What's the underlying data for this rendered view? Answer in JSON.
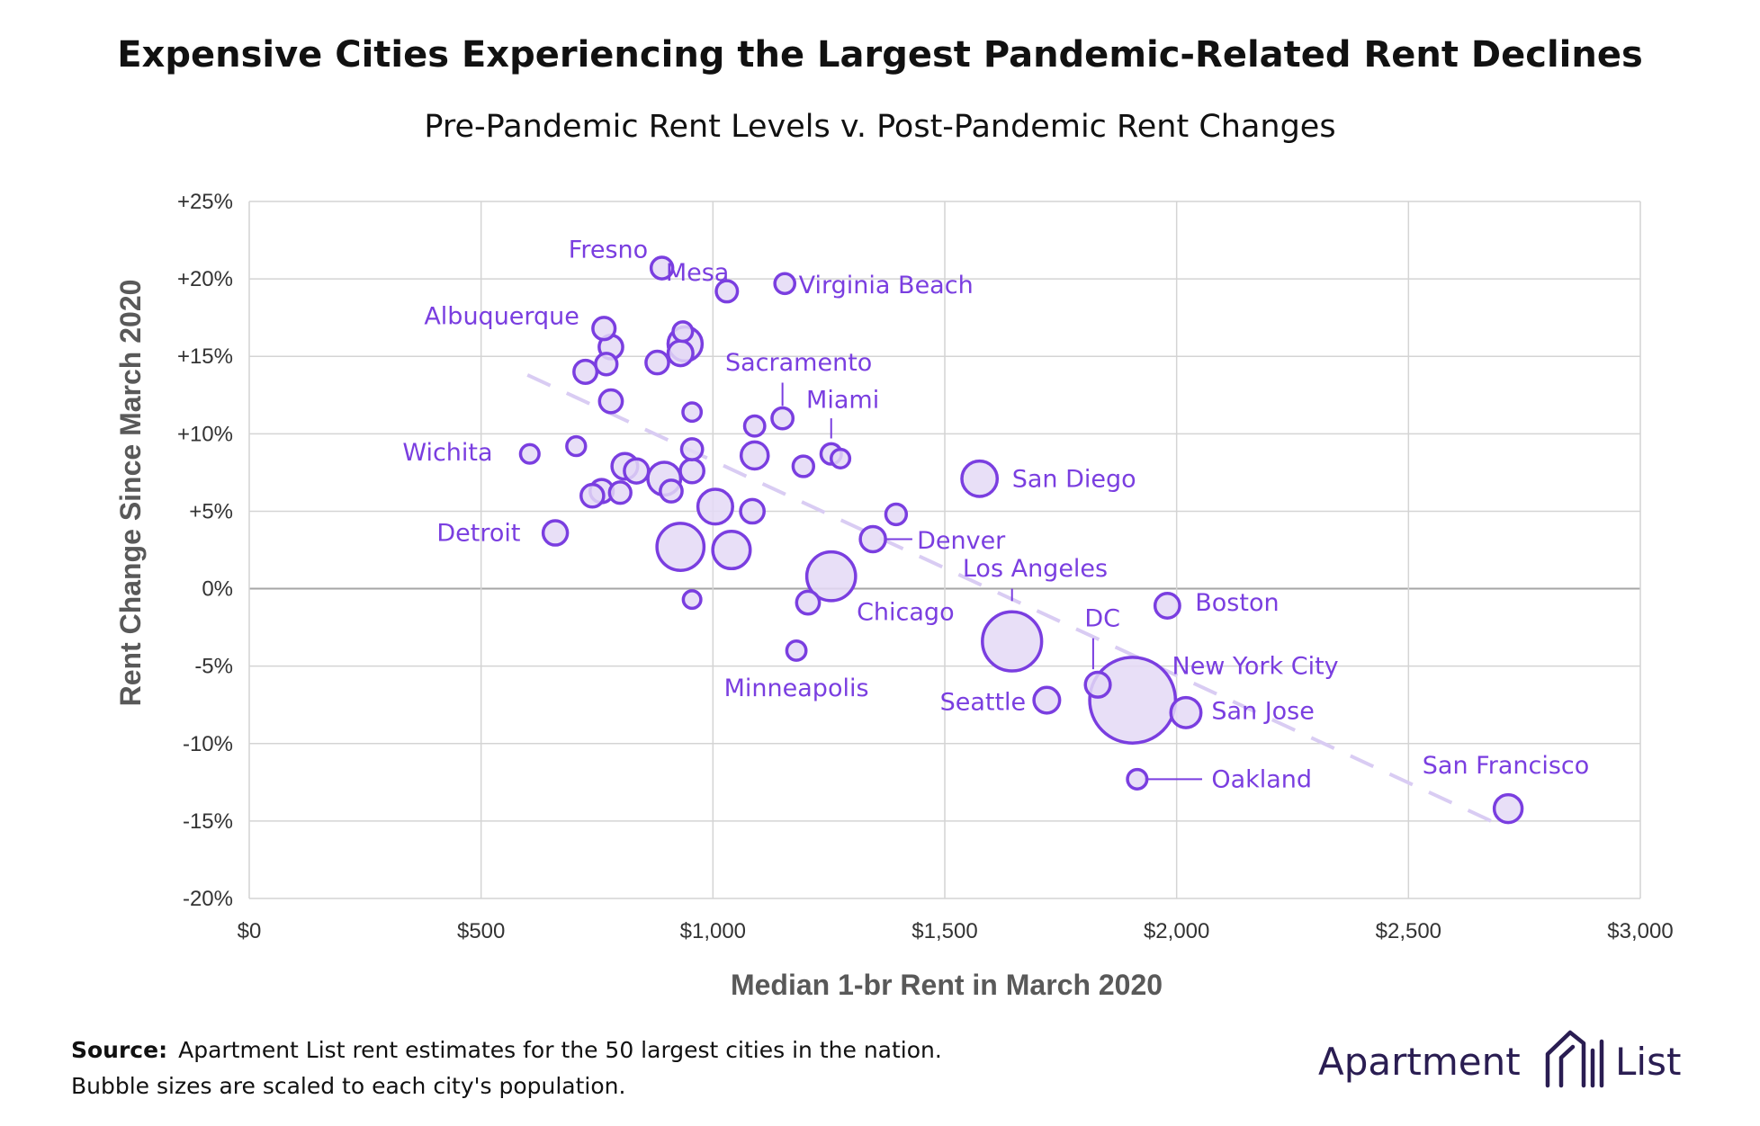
{
  "colors": {
    "accent": "#7a3ee0",
    "bubble_fill": "#e4d9f6",
    "trend": "#d9ccf3",
    "grid": "#d4d4d4",
    "brand": "#2a1d52"
  },
  "chart_data": {
    "type": "scatter",
    "title": "Expensive Cities Experiencing the Largest Pandemic-Related Rent Declines",
    "subtitle": "Pre-Pandemic Rent Levels v. Post-Pandemic Rent Changes",
    "xlabel": "Median 1-br Rent in March 2020",
    "ylabel": "Rent Change Since March 2020",
    "xlim": [
      0,
      3000
    ],
    "ylim": [
      -20,
      25
    ],
    "x_ticks": [
      {
        "value": 0,
        "label": "$0"
      },
      {
        "value": 500,
        "label": "$500"
      },
      {
        "value": 1000,
        "label": "$1,000"
      },
      {
        "value": 1500,
        "label": "$1,500"
      },
      {
        "value": 2000,
        "label": "$2,000"
      },
      {
        "value": 2500,
        "label": "$2,500"
      },
      {
        "value": 3000,
        "label": "$3,000"
      }
    ],
    "y_ticks": [
      {
        "value": 25,
        "label": "+25%"
      },
      {
        "value": 20,
        "label": "+20%"
      },
      {
        "value": 15,
        "label": "+15%"
      },
      {
        "value": 10,
        "label": "+10%"
      },
      {
        "value": 5,
        "label": "+5%"
      },
      {
        "value": 0,
        "label": "0%"
      },
      {
        "value": -5,
        "label": "-5%"
      },
      {
        "value": -10,
        "label": "-10%"
      },
      {
        "value": -15,
        "label": "-15%"
      },
      {
        "value": -20,
        "label": "-20%"
      }
    ],
    "grid": true,
    "bubble_size": "population",
    "trendline": {
      "style": "dashed",
      "x": [
        600,
        2700
      ],
      "y": [
        13.8,
        -15.3
      ]
    },
    "points": [
      {
        "name": "Fresno",
        "x": 890,
        "y": 20.7,
        "size": 0.53
      },
      {
        "name": "Mesa",
        "x": 1030,
        "y": 19.2,
        "size": 0.51
      },
      {
        "name": "Virginia Beach",
        "x": 1155,
        "y": 19.7,
        "size": 0.45
      },
      {
        "name": "Albuquerque",
        "x": 765,
        "y": 16.8,
        "size": 0.56
      },
      {
        "name": "Sacramento",
        "x": 1150,
        "y": 11.0,
        "size": 0.5
      },
      {
        "name": "Miami",
        "x": 1255,
        "y": 8.7,
        "size": 0.47
      },
      {
        "name": "Wichita",
        "x": 605,
        "y": 8.7,
        "size": 0.39
      },
      {
        "name": "San Diego",
        "x": 1575,
        "y": 7.1,
        "size": 1.42
      },
      {
        "name": "Detroit",
        "x": 660,
        "y": 3.6,
        "size": 0.67
      },
      {
        "name": "Denver",
        "x": 1345,
        "y": 3.2,
        "size": 0.72
      },
      {
        "name": "Los Angeles",
        "x": 1645,
        "y": -3.4,
        "size": 3.98
      },
      {
        "name": "Boston",
        "x": 1980,
        "y": -1.1,
        "size": 0.69
      },
      {
        "name": "Chicago",
        "x": 1255,
        "y": 0.8,
        "size": 2.7
      },
      {
        "name": "DC",
        "x": 1830,
        "y": -6.2,
        "size": 0.7
      },
      {
        "name": "New York City",
        "x": 1905,
        "y": -7.2,
        "size": 8.34
      },
      {
        "name": "San Jose",
        "x": 2020,
        "y": -8.0,
        "size": 1.03
      },
      {
        "name": "Seattle",
        "x": 1720,
        "y": -7.2,
        "size": 0.75
      },
      {
        "name": "Minneapolis",
        "x": 1180,
        "y": -4.0,
        "size": 0.42
      },
      {
        "name": "Oakland",
        "x": 1915,
        "y": -12.3,
        "size": 0.43
      },
      {
        "name": "San Francisco",
        "x": 2715,
        "y": -14.2,
        "size": 0.88
      },
      {
        "x": 935,
        "y": 16.6,
        "size": 0.43
      },
      {
        "x": 780,
        "y": 15.6,
        "size": 0.63
      },
      {
        "x": 940,
        "y": 15.8,
        "size": 1.32
      },
      {
        "x": 930,
        "y": 15.2,
        "size": 0.7
      },
      {
        "x": 770,
        "y": 14.5,
        "size": 0.52
      },
      {
        "x": 725,
        "y": 14.0,
        "size": 0.6
      },
      {
        "x": 880,
        "y": 14.6,
        "size": 0.58
      },
      {
        "x": 780,
        "y": 12.1,
        "size": 0.59
      },
      {
        "x": 955,
        "y": 11.4,
        "size": 0.38
      },
      {
        "x": 1090,
        "y": 10.5,
        "size": 0.46
      },
      {
        "x": 705,
        "y": 9.2,
        "size": 0.4
      },
      {
        "x": 955,
        "y": 9.0,
        "size": 0.5
      },
      {
        "x": 1090,
        "y": 8.6,
        "size": 0.83
      },
      {
        "x": 1275,
        "y": 8.4,
        "size": 0.39
      },
      {
        "x": 1195,
        "y": 7.9,
        "size": 0.48
      },
      {
        "x": 810,
        "y": 7.9,
        "size": 0.75
      },
      {
        "x": 835,
        "y": 7.6,
        "size": 0.66
      },
      {
        "x": 955,
        "y": 7.6,
        "size": 0.63
      },
      {
        "x": 895,
        "y": 7.1,
        "size": 1.22
      },
      {
        "x": 910,
        "y": 6.3,
        "size": 0.54
      },
      {
        "x": 760,
        "y": 6.3,
        "size": 0.61
      },
      {
        "x": 800,
        "y": 6.2,
        "size": 0.52
      },
      {
        "x": 740,
        "y": 6.0,
        "size": 0.58
      },
      {
        "x": 1005,
        "y": 5.3,
        "size": 1.37
      },
      {
        "x": 1085,
        "y": 5.0,
        "size": 0.63
      },
      {
        "x": 1395,
        "y": 4.8,
        "size": 0.48
      },
      {
        "x": 930,
        "y": 2.7,
        "size": 2.51
      },
      {
        "x": 1040,
        "y": 2.5,
        "size": 1.59
      },
      {
        "x": 1205,
        "y": -0.9,
        "size": 0.59
      },
      {
        "x": 955,
        "y": -0.7,
        "size": 0.35
      }
    ],
    "labels": [
      {
        "name": "Fresno",
        "text": "Fresno",
        "lx": 860,
        "ly": 21.9,
        "anchor": "end"
      },
      {
        "name": "Mesa",
        "text": "Mesa",
        "lx": 1035,
        "ly": 20.4,
        "anchor": "end"
      },
      {
        "name": "Virginia Beach",
        "text": "Virginia Beach",
        "lx": 1185,
        "ly": 19.6,
        "anchor": "start"
      },
      {
        "name": "Albuquerque",
        "text": "Albuquerque",
        "lx": 712,
        "ly": 17.6,
        "anchor": "end"
      },
      {
        "name": "Sacramento",
        "text": "Sacramento",
        "lx": 1185,
        "ly": 14.6,
        "anchor": "middle",
        "leader": [
          1150,
          13.3,
          1150,
          11.8
        ]
      },
      {
        "name": "Miami",
        "text": "Miami",
        "lx": 1280,
        "ly": 12.2,
        "anchor": "middle",
        "leader": [
          1255,
          11.0,
          1255,
          9.7
        ]
      },
      {
        "name": "Wichita",
        "text": "Wichita",
        "lx": 525,
        "ly": 8.8,
        "anchor": "end"
      },
      {
        "name": "San Diego",
        "text": "San Diego",
        "lx": 1645,
        "ly": 7.1,
        "anchor": "start"
      },
      {
        "name": "Detroit",
        "text": "Detroit",
        "lx": 585,
        "ly": 3.6,
        "anchor": "end"
      },
      {
        "name": "Denver",
        "text": "Denver",
        "lx": 1440,
        "ly": 3.1,
        "anchor": "start",
        "leader": [
          1370,
          3.2,
          1430,
          3.2
        ]
      },
      {
        "name": "Los Angeles",
        "text": "Los Angeles",
        "lx": 1695,
        "ly": 1.3,
        "anchor": "middle",
        "leader": [
          1645,
          0.0,
          1645,
          -0.8
        ]
      },
      {
        "name": "Boston",
        "text": "Boston",
        "lx": 2040,
        "ly": -0.9,
        "anchor": "start"
      },
      {
        "name": "Chicago",
        "text": "Chicago",
        "lx": 1310,
        "ly": -1.5,
        "anchor": "start"
      },
      {
        "name": "DC",
        "text": "DC",
        "lx": 1840,
        "ly": -1.9,
        "anchor": "middle",
        "leader": [
          1820,
          -3.2,
          1820,
          -5.2
        ]
      },
      {
        "name": "New York City",
        "text": "New York City",
        "lx": 1990,
        "ly": -5.0,
        "anchor": "start"
      },
      {
        "name": "San Jose",
        "text": "San Jose",
        "lx": 2075,
        "ly": -7.9,
        "anchor": "start"
      },
      {
        "name": "Seattle",
        "text": "Seattle",
        "lx": 1675,
        "ly": -7.3,
        "anchor": "end"
      },
      {
        "name": "Minneapolis",
        "text": "Minneapolis",
        "lx": 1180,
        "ly": -6.4,
        "anchor": "middle"
      },
      {
        "name": "Oakland",
        "text": "Oakland",
        "lx": 2075,
        "ly": -12.3,
        "anchor": "start",
        "leader": [
          1930,
          -12.3,
          2055,
          -12.3
        ]
      },
      {
        "name": "San Francisco",
        "text": "San Francisco",
        "lx": 2710,
        "ly": -11.4,
        "anchor": "middle"
      }
    ]
  },
  "footer": {
    "source_label": "Source:",
    "source_text": "Apartment List rent estimates for the 50 largest cities in the nation.",
    "note": "Bubble sizes are scaled to each city's population."
  },
  "brand": {
    "name_left": "Apartment",
    "name_right": "List",
    "logo_icon": "building-logo-icon"
  }
}
